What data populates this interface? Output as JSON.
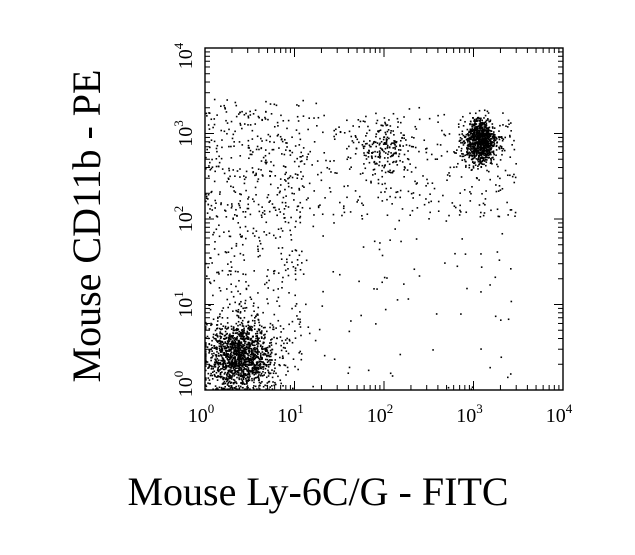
{
  "chart_data": {
    "type": "scatter",
    "plot_kind": "flow cytometry dot plot",
    "xlabel": "Mouse Ly-6C/G - FITC",
    "ylabel": "Mouse CD11b - PE",
    "x_scale": "log",
    "y_scale": "log",
    "xlim": [
      1,
      10000
    ],
    "ylim": [
      1,
      10000
    ],
    "x_ticks": [
      {
        "base": "10",
        "exp": "0"
      },
      {
        "base": "10",
        "exp": "1"
      },
      {
        "base": "10",
        "exp": "2"
      },
      {
        "base": "10",
        "exp": "3"
      },
      {
        "base": "10",
        "exp": "4"
      }
    ],
    "y_ticks": [
      {
        "base": "10",
        "exp": "0"
      },
      {
        "base": "10",
        "exp": "1"
      },
      {
        "base": "10",
        "exp": "2"
      },
      {
        "base": "10",
        "exp": "3"
      },
      {
        "base": "10",
        "exp": "4"
      }
    ],
    "grid": false,
    "point_color": "#000000",
    "populations": [
      {
        "center": [
          2.5,
          2.5
        ],
        "spread_log10": [
          0.18,
          0.2
        ],
        "points": 1400
      },
      {
        "center": [
          1200,
          800
        ],
        "spread_log10": [
          0.09,
          0.13
        ],
        "points": 950
      },
      {
        "center": [
          100,
          700
        ],
        "spread_log10": [
          0.15,
          0.16
        ],
        "points": 180
      },
      {
        "range": [
          [
            1,
            3000
          ],
          [
            1,
            2500
          ]
        ],
        "distribution": "sparse",
        "points": 1100
      }
    ]
  }
}
